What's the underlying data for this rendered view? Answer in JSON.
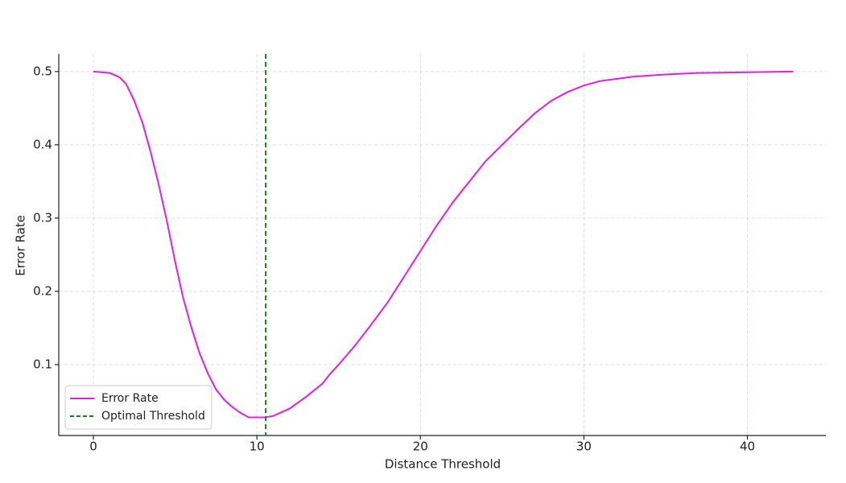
{
  "chart_data": {
    "type": "line",
    "x_label": "Distance Threshold",
    "y_label": "Error Rate",
    "x": [
      0,
      1,
      1.6,
      2,
      2.5,
      3,
      3.5,
      4,
      4.5,
      5,
      5.5,
      6,
      6.5,
      7,
      7.5,
      8,
      8.5,
      9,
      9.5,
      10,
      10.5,
      11,
      12,
      13,
      14,
      14.5,
      15,
      16,
      17,
      18,
      19,
      20,
      21,
      22,
      23,
      24,
      25,
      26,
      27,
      28,
      29,
      30,
      31,
      32,
      33,
      35,
      37,
      40,
      42.8
    ],
    "series": [
      {
        "name": "Error Rate",
        "color": "#e21ee6",
        "values": [
          0.5,
          0.498,
          0.492,
          0.483,
          0.46,
          0.43,
          0.39,
          0.345,
          0.295,
          0.24,
          0.19,
          0.15,
          0.115,
          0.088,
          0.066,
          0.052,
          0.042,
          0.034,
          0.028,
          0.028,
          0.028,
          0.03,
          0.04,
          0.056,
          0.074,
          0.088,
          0.1,
          0.126,
          0.155,
          0.185,
          0.22,
          0.255,
          0.29,
          0.322,
          0.35,
          0.378,
          0.4,
          0.422,
          0.443,
          0.46,
          0.472,
          0.481,
          0.487,
          0.49,
          0.493,
          0.496,
          0.498,
          0.499,
          0.5
        ]
      }
    ],
    "vlines": [
      {
        "name": "Optimal Threshold",
        "x": 10.54,
        "color": "#1a7f1a"
      }
    ],
    "xlim": [
      -2.12,
      44.8
    ],
    "ylim": [
      0.0033,
      0.524
    ],
    "xticks": [
      0,
      10,
      20,
      30,
      40
    ],
    "yticks": [
      0.1,
      0.2,
      0.3,
      0.4,
      0.5
    ],
    "grid": true,
    "legend": "lower left"
  }
}
